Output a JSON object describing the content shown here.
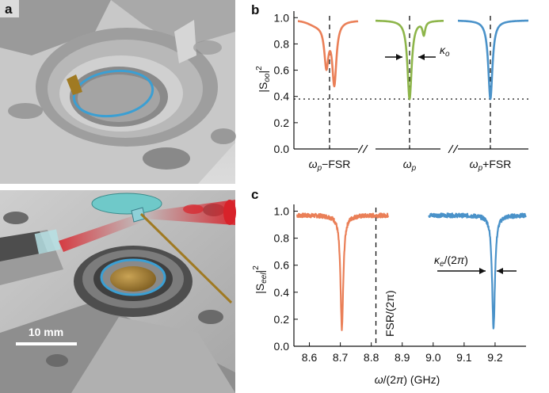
{
  "panel_labels": {
    "a": "a",
    "b": "b",
    "c": "c"
  },
  "scale_bar": {
    "label": "10 mm"
  },
  "colors": {
    "orange": "#ea7f57",
    "green": "#8db54a",
    "blue": "#4a92c9",
    "cyan": "#3b9fd3",
    "red": "#d8222a",
    "brass": "#a07a22"
  },
  "chart_data": [
    {
      "id": "b",
      "type": "line",
      "ylabel_parts": [
        "|S",
        "oo",
        "|",
        "2"
      ],
      "ylim": [
        0,
        1.05
      ],
      "yticks": [
        "0.0",
        "0.2",
        "0.4",
        "0.6",
        "0.8",
        "1.0"
      ],
      "xticklabels": [
        "ωp−FSR",
        "ωp",
        "ωp+FSR"
      ],
      "reference_line_y": 0.38,
      "annotation": "κo",
      "series": [
        {
          "color": "orange",
          "description": "split doublet resonance",
          "baseline": 0.98,
          "dips": [
            {
              "pos": 0.72,
              "depth": 0.32
            },
            {
              "pos": 0.82,
              "depth": 0.47
            }
          ]
        },
        {
          "color": "green",
          "description": "pumped resonance",
          "baseline": 0.98,
          "dips": [
            {
              "pos": 0.5,
              "depth": 0.6
            },
            {
              "pos": 0.88,
              "depth": 0.1
            }
          ]
        },
        {
          "color": "blue",
          "description": "resonance",
          "baseline": 0.98,
          "dips": [
            {
              "pos": 0.5,
              "depth": 0.6
            }
          ]
        }
      ]
    },
    {
      "id": "c",
      "type": "line",
      "ylabel_parts": [
        "|S",
        "eel",
        "|",
        "2"
      ],
      "xlabel": "ω/(2π) (GHz)",
      "xlim": [
        8.55,
        9.3
      ],
      "ylim": [
        0,
        1.05
      ],
      "xticks": [
        "8.6",
        "8.7",
        "8.8",
        "8.9",
        "9.0",
        "9.1",
        "9.2"
      ],
      "yticks": [
        "0.0",
        "0.2",
        "0.4",
        "0.6",
        "0.8",
        "1.0"
      ],
      "vline_label": "FSR/(2π)",
      "vline_x": 8.815,
      "annotation": "κe/(2π)",
      "series": [
        {
          "color": "orange",
          "x_range": [
            8.56,
            8.855
          ],
          "baseline": 0.97,
          "dip_center": 8.705,
          "dip_min": 0.13
        },
        {
          "color": "blue",
          "x_range": [
            8.985,
            9.3
          ],
          "baseline": 0.97,
          "dip_center": 9.195,
          "dip_min": 0.13
        }
      ]
    }
  ]
}
